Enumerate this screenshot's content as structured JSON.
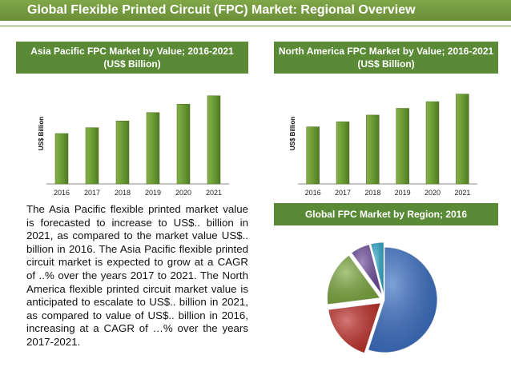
{
  "page": {
    "title": "Global Flexible Printed Circuit (FPC) Market: Regional Overview",
    "description": "The Asia Pacific flexible printed market value is forecasted to increase to US$.. billion in 2021, as compared to the market value US$.. billion in 2016. The Asia Pacific flexible printed circuit market is expected to grow at a CAGR of ..% over the years 2017 to 2021. The North America flexible printed circuit market value is anticipated to escalate to US$.. billion in 2021, as compared to value of US$.. billion in 2016, increasing at a CAGR of …% over the years 2017-2021."
  },
  "colors": {
    "title_bar": "#6b8f3a",
    "header_box": "#5a8a36",
    "bar": "#5e8a2a",
    "bar_light": "#86b04a",
    "pie": [
      "#3a6fc4",
      "#c0302b",
      "#7da83e",
      "#6c4a9a",
      "#2fa8c8"
    ]
  },
  "chart_data": [
    {
      "type": "bar",
      "title": "Asia Pacific FPC Market by Value; 2016-2021 (US$ Billion)",
      "xlabel": "",
      "ylabel": "US$ Billion",
      "categories": [
        "2016",
        "2017",
        "2018",
        "2019",
        "2020",
        "2021"
      ],
      "values": [
        60,
        67,
        75,
        85,
        95,
        105
      ],
      "ylim": [
        0,
        120
      ],
      "grid": false,
      "legend": "none"
    },
    {
      "type": "bar",
      "title": "North America FPC Market by Value; 2016-2021 (US$ Billion)",
      "xlabel": "",
      "ylabel": "US$ Billion",
      "categories": [
        "2016",
        "2017",
        "2018",
        "2019",
        "2020",
        "2021"
      ],
      "values": [
        68,
        74,
        82,
        90,
        98,
        107
      ],
      "ylim": [
        0,
        120
      ],
      "grid": false,
      "legend": "none"
    },
    {
      "type": "pie",
      "title": "Global FPC Market by Region; 2016",
      "values": [
        55,
        18,
        17,
        6,
        4
      ],
      "legend": "none"
    }
  ]
}
